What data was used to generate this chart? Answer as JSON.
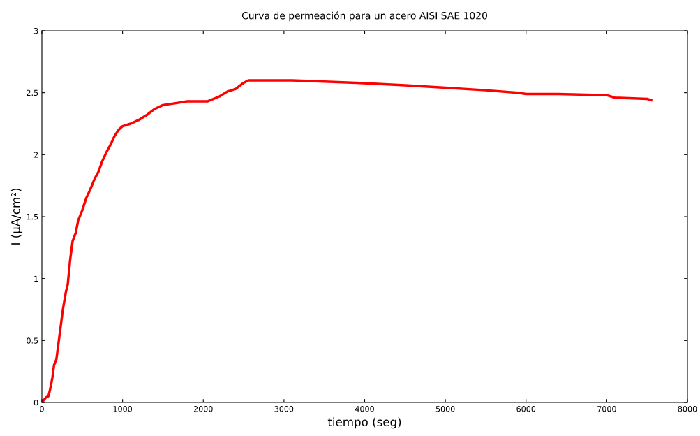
{
  "chart_data": {
    "type": "line",
    "title": "Curva de permeación para un acero AISI SAE 1020",
    "xlabel": "tiempo (seg)",
    "ylabel": "I (µA/cm²)",
    "xlim": [
      0,
      8000
    ],
    "ylim": [
      0,
      3
    ],
    "xticks": [
      0,
      1000,
      2000,
      3000,
      4000,
      5000,
      6000,
      7000,
      8000
    ],
    "yticks": [
      0,
      0.5,
      1,
      1.5,
      2,
      2.5,
      3
    ],
    "grid": false,
    "legend": false,
    "series": [
      {
        "color": "#ff0000",
        "x": [
          0,
          50,
          80,
          100,
          130,
          150,
          180,
          200,
          230,
          260,
          300,
          320,
          350,
          380,
          420,
          450,
          500,
          550,
          600,
          650,
          700,
          750,
          800,
          850,
          900,
          950,
          1000,
          1100,
          1200,
          1300,
          1400,
          1500,
          1600,
          1700,
          1800,
          2050,
          2200,
          2300,
          2400,
          2500,
          2560,
          3000,
          3100,
          3500,
          3900,
          4500,
          5000,
          5500,
          5900,
          6000,
          6400,
          7000,
          7100,
          7500,
          7550
        ],
        "values": [
          0,
          0.04,
          0.05,
          0.1,
          0.2,
          0.3,
          0.35,
          0.45,
          0.6,
          0.75,
          0.9,
          0.95,
          1.15,
          1.3,
          1.37,
          1.47,
          1.55,
          1.65,
          1.72,
          1.8,
          1.86,
          1.95,
          2.02,
          2.08,
          2.15,
          2.2,
          2.23,
          2.25,
          2.28,
          2.32,
          2.37,
          2.4,
          2.41,
          2.42,
          2.43,
          2.43,
          2.47,
          2.51,
          2.53,
          2.58,
          2.6,
          2.6,
          2.6,
          2.59,
          2.58,
          2.56,
          2.54,
          2.52,
          2.5,
          2.49,
          2.49,
          2.48,
          2.46,
          2.45,
          2.44
        ]
      }
    ]
  }
}
